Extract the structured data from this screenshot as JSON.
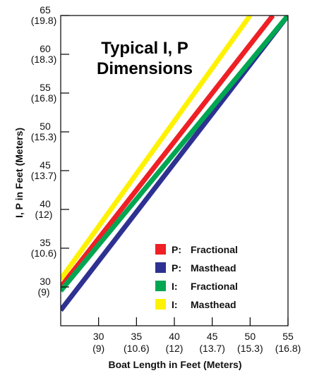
{
  "chart_data": {
    "type": "line",
    "title_lines": [
      "Typical I, P",
      "Dimensions"
    ],
    "xlabel": "Boat Length in Feet (Meters)",
    "ylabel": "I, P in Feet (Meters)",
    "xlim": [
      25,
      55
    ],
    "ylim": [
      25,
      65
    ],
    "grid": false,
    "legend_position": "bottom-right",
    "x_ticks": [
      {
        "value": 30,
        "label": "30",
        "sublabel": "(9)"
      },
      {
        "value": 35,
        "label": "35",
        "sublabel": "(10.6)"
      },
      {
        "value": 40,
        "label": "40",
        "sublabel": "(12)"
      },
      {
        "value": 45,
        "label": "45",
        "sublabel": "(13.7)"
      },
      {
        "value": 50,
        "label": "50",
        "sublabel": "(15.3)"
      },
      {
        "value": 55,
        "label": "55",
        "sublabel": "(16.8)"
      }
    ],
    "y_ticks": [
      {
        "value": 30,
        "label": "30",
        "sublabel": "(9)"
      },
      {
        "value": 35,
        "label": "35",
        "sublabel": "(10.6)"
      },
      {
        "value": 40,
        "label": "40",
        "sublabel": "(12)"
      },
      {
        "value": 45,
        "label": "45",
        "sublabel": "(13.7)"
      },
      {
        "value": 50,
        "label": "50",
        "sublabel": "(15.3)"
      },
      {
        "value": 55,
        "label": "55",
        "sublabel": "(16.8)"
      },
      {
        "value": 60,
        "label": "60",
        "sublabel": "(18.3)"
      },
      {
        "value": 65,
        "label": "65",
        "sublabel": "(19.8)"
      }
    ],
    "series": [
      {
        "name": "P: Fractional",
        "prefix": "P:",
        "kind": "Fractional",
        "color": "#ee2025",
        "x": [
          25,
          53
        ],
        "y": [
          30,
          65
        ]
      },
      {
        "name": "P: Masthead",
        "prefix": "P:",
        "kind": "Masthead",
        "color": "#2e3192",
        "x": [
          25,
          55
        ],
        "y": [
          27,
          65
        ]
      },
      {
        "name": "I: Fractional",
        "prefix": "I:",
        "kind": "Fractional",
        "color": "#00a651",
        "x": [
          25,
          55
        ],
        "y": [
          29.5,
          65
        ]
      },
      {
        "name": "I: Masthead",
        "prefix": "I:",
        "kind": "Masthead",
        "color": "#fff200",
        "x": [
          25,
          50
        ],
        "y": [
          31,
          65
        ]
      }
    ]
  }
}
